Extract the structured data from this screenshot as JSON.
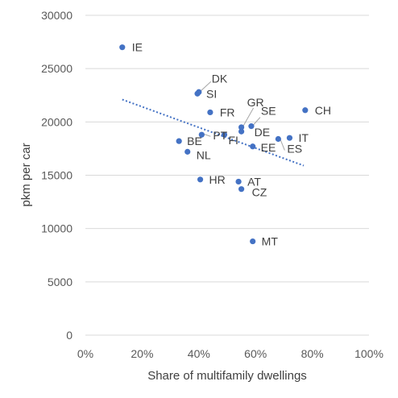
{
  "colors": {
    "marker": "#4472C4",
    "trendline": "#4472C4",
    "gridline": "#D9D9D9",
    "text": "#595959",
    "leader": "#A6A6A6"
  },
  "chart_data": {
    "type": "scatter",
    "title": "",
    "xlabel": "Share of multifamily dwellings",
    "ylabel": "pkm per car",
    "xlim": [
      0,
      1
    ],
    "ylim": [
      0,
      30000
    ],
    "x_ticks": [
      0,
      0.2,
      0.4,
      0.6,
      0.8,
      1.0
    ],
    "x_tick_labels": [
      "0%",
      "20%",
      "40%",
      "60%",
      "80%",
      "100%"
    ],
    "y_ticks": [
      0,
      5000,
      10000,
      15000,
      20000,
      25000,
      30000
    ],
    "y_tick_labels": [
      "0",
      "5000",
      "10000",
      "15000",
      "20000",
      "25000",
      "30000"
    ],
    "grid": "horizontal",
    "legend": "none",
    "trendline": {
      "type": "linear",
      "style": "dotted",
      "x": [
        0.13,
        0.77
      ],
      "y": [
        22100,
        15900
      ]
    },
    "points": [
      {
        "label": "IE",
        "x": 0.13,
        "y": 27000
      },
      {
        "label": "DK",
        "x": 0.4,
        "y": 22800
      },
      {
        "label": "SI",
        "x": 0.395,
        "y": 22650
      },
      {
        "label": "FR",
        "x": 0.44,
        "y": 20900
      },
      {
        "label": "GR",
        "x": 0.55,
        "y": 19500
      },
      {
        "label": "SE",
        "x": 0.585,
        "y": 19600
      },
      {
        "label": "CH",
        "x": 0.775,
        "y": 21100
      },
      {
        "label": "DE",
        "x": 0.55,
        "y": 19100
      },
      {
        "label": "BE",
        "x": 0.33,
        "y": 18200
      },
      {
        "label": "PT",
        "x": 0.41,
        "y": 18800
      },
      {
        "label": "FI",
        "x": 0.49,
        "y": 18800
      },
      {
        "label": "EE",
        "x": 0.59,
        "y": 17700
      },
      {
        "label": "IT",
        "x": 0.72,
        "y": 18500
      },
      {
        "label": "ES",
        "x": 0.68,
        "y": 18400
      },
      {
        "label": "NL",
        "x": 0.36,
        "y": 17200
      },
      {
        "label": "HR",
        "x": 0.405,
        "y": 14600
      },
      {
        "label": "AT",
        "x": 0.54,
        "y": 14400
      },
      {
        "label": "CZ",
        "x": 0.55,
        "y": 13700
      },
      {
        "label": "MT",
        "x": 0.59,
        "y": 8800
      }
    ]
  }
}
